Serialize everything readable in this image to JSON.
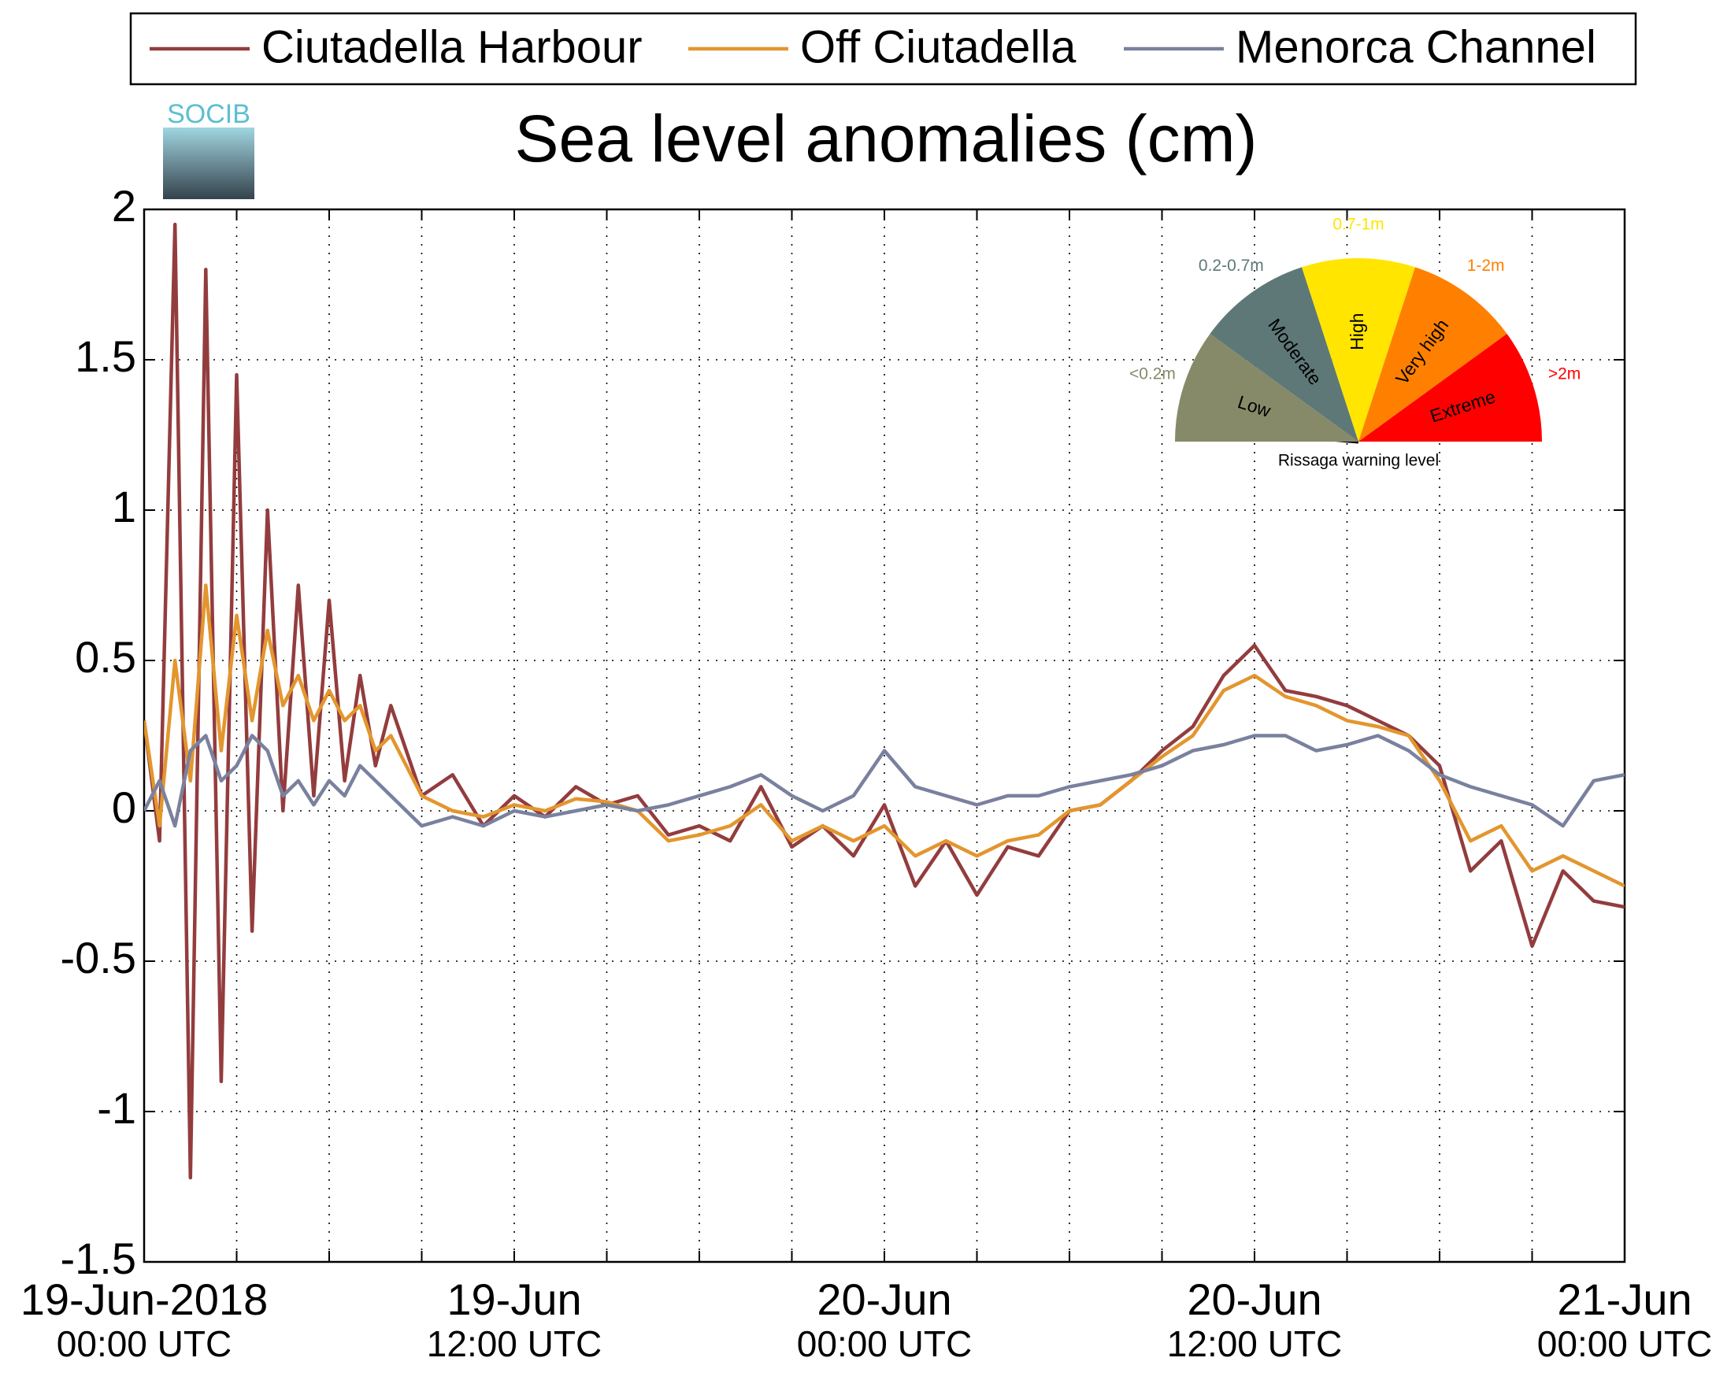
{
  "chart_data": {
    "type": "line",
    "title": "Sea level anomalies (cm)",
    "logo": "SOCIB",
    "legend": "top",
    "grid": true,
    "x": [
      0,
      0.5,
      1,
      1.5,
      2,
      2.5,
      3,
      3.5,
      4,
      4.5,
      5,
      5.5,
      6,
      6.5,
      7,
      7.5,
      8,
      9,
      10,
      11,
      12,
      13,
      14,
      15,
      16,
      17,
      18,
      19,
      20,
      21,
      22,
      23,
      24,
      25,
      26,
      27,
      28,
      29,
      30,
      31,
      32,
      33,
      34,
      35,
      36,
      37,
      38,
      39,
      40,
      41,
      42,
      43,
      44,
      45,
      46,
      47,
      48
    ],
    "series": [
      {
        "name": "Ciutadella Harbour",
        "color": "#933c3e",
        "values": [
          0.3,
          -0.1,
          1.95,
          -1.22,
          1.8,
          -0.9,
          1.45,
          -0.4,
          1.0,
          0.0,
          0.75,
          0.05,
          0.7,
          0.1,
          0.45,
          0.15,
          0.35,
          0.05,
          0.12,
          -0.05,
          0.05,
          -0.02,
          0.08,
          0.02,
          0.05,
          -0.08,
          -0.05,
          -0.1,
          0.08,
          -0.12,
          -0.05,
          -0.15,
          0.02,
          -0.25,
          -0.1,
          -0.28,
          -0.12,
          -0.15,
          0.0,
          0.02,
          0.1,
          0.2,
          0.28,
          0.45,
          0.55,
          0.4,
          0.38,
          0.35,
          0.3,
          0.25,
          0.15,
          -0.2,
          -0.1,
          -0.45,
          -0.2,
          -0.3,
          -0.32
        ]
      },
      {
        "name": "Off Ciutadella",
        "color": "#e3962e",
        "values": [
          0.3,
          -0.05,
          0.5,
          0.1,
          0.75,
          0.2,
          0.65,
          0.3,
          0.6,
          0.35,
          0.45,
          0.3,
          0.4,
          0.3,
          0.35,
          0.2,
          0.25,
          0.05,
          0.0,
          -0.02,
          0.02,
          0.0,
          0.04,
          0.03,
          0.0,
          -0.1,
          -0.08,
          -0.05,
          0.02,
          -0.1,
          -0.05,
          -0.1,
          -0.05,
          -0.15,
          -0.1,
          -0.15,
          -0.1,
          -0.08,
          0.0,
          0.02,
          0.1,
          0.18,
          0.25,
          0.4,
          0.45,
          0.38,
          0.35,
          0.3,
          0.28,
          0.25,
          0.1,
          -0.1,
          -0.05,
          -0.2,
          -0.15,
          -0.2,
          -0.25
        ]
      },
      {
        "name": "Menorca Channel",
        "color": "#7a819e",
        "values": [
          0.0,
          0.1,
          -0.05,
          0.2,
          0.25,
          0.1,
          0.15,
          0.25,
          0.2,
          0.05,
          0.1,
          0.02,
          0.1,
          0.05,
          0.15,
          0.1,
          0.05,
          -0.05,
          -0.02,
          -0.05,
          0.0,
          -0.02,
          0.0,
          0.02,
          0.0,
          0.02,
          0.05,
          0.08,
          0.12,
          0.05,
          0.0,
          0.05,
          0.2,
          0.08,
          0.05,
          0.02,
          0.05,
          0.05,
          0.08,
          0.1,
          0.12,
          0.15,
          0.2,
          0.22,
          0.25,
          0.25,
          0.2,
          0.22,
          0.25,
          0.2,
          0.12,
          0.08,
          0.05,
          0.02,
          -0.05,
          0.1,
          0.12
        ]
      }
    ],
    "xlim": [
      0,
      48
    ],
    "xticks": [
      {
        "value": 0,
        "label": "19-Jun-2018",
        "sublabel": "00:00 UTC"
      },
      {
        "value": 3,
        "label": null
      },
      {
        "value": 6,
        "label": null
      },
      {
        "value": 9,
        "label": null
      },
      {
        "value": 12,
        "label": "19-Jun",
        "sublabel": "12:00 UTC"
      },
      {
        "value": 15,
        "label": null
      },
      {
        "value": 18,
        "label": null
      },
      {
        "value": 21,
        "label": null
      },
      {
        "value": 24,
        "label": "20-Jun",
        "sublabel": "00:00 UTC"
      },
      {
        "value": 27,
        "label": null
      },
      {
        "value": 30,
        "label": null
      },
      {
        "value": 33,
        "label": null
      },
      {
        "value": 36,
        "label": "20-Jun",
        "sublabel": "12:00 UTC"
      },
      {
        "value": 39,
        "label": null
      },
      {
        "value": 42,
        "label": null
      },
      {
        "value": 45,
        "label": null
      },
      {
        "value": 48,
        "label": "21-Jun",
        "sublabel": "00:00 UTC"
      }
    ],
    "ylim": [
      -1.5,
      2
    ],
    "yticks": [
      -1.5,
      -1,
      -0.5,
      0,
      0.5,
      1,
      1.5,
      2
    ],
    "inset": {
      "caption": "Rissaga warning level",
      "levels": [
        {
          "name": "Low",
          "range": "<0.2m",
          "color": "#878a69"
        },
        {
          "name": "Moderate",
          "range": "0.2-0.7m",
          "color": "#5e7877"
        },
        {
          "name": "High",
          "range": "0.7-1m",
          "color": "#ffe500"
        },
        {
          "name": "Very high",
          "range": "1-2m",
          "color": "#ff8000"
        },
        {
          "name": "Extreme",
          "range": ">2m",
          "color": "#ff0000"
        }
      ]
    }
  }
}
